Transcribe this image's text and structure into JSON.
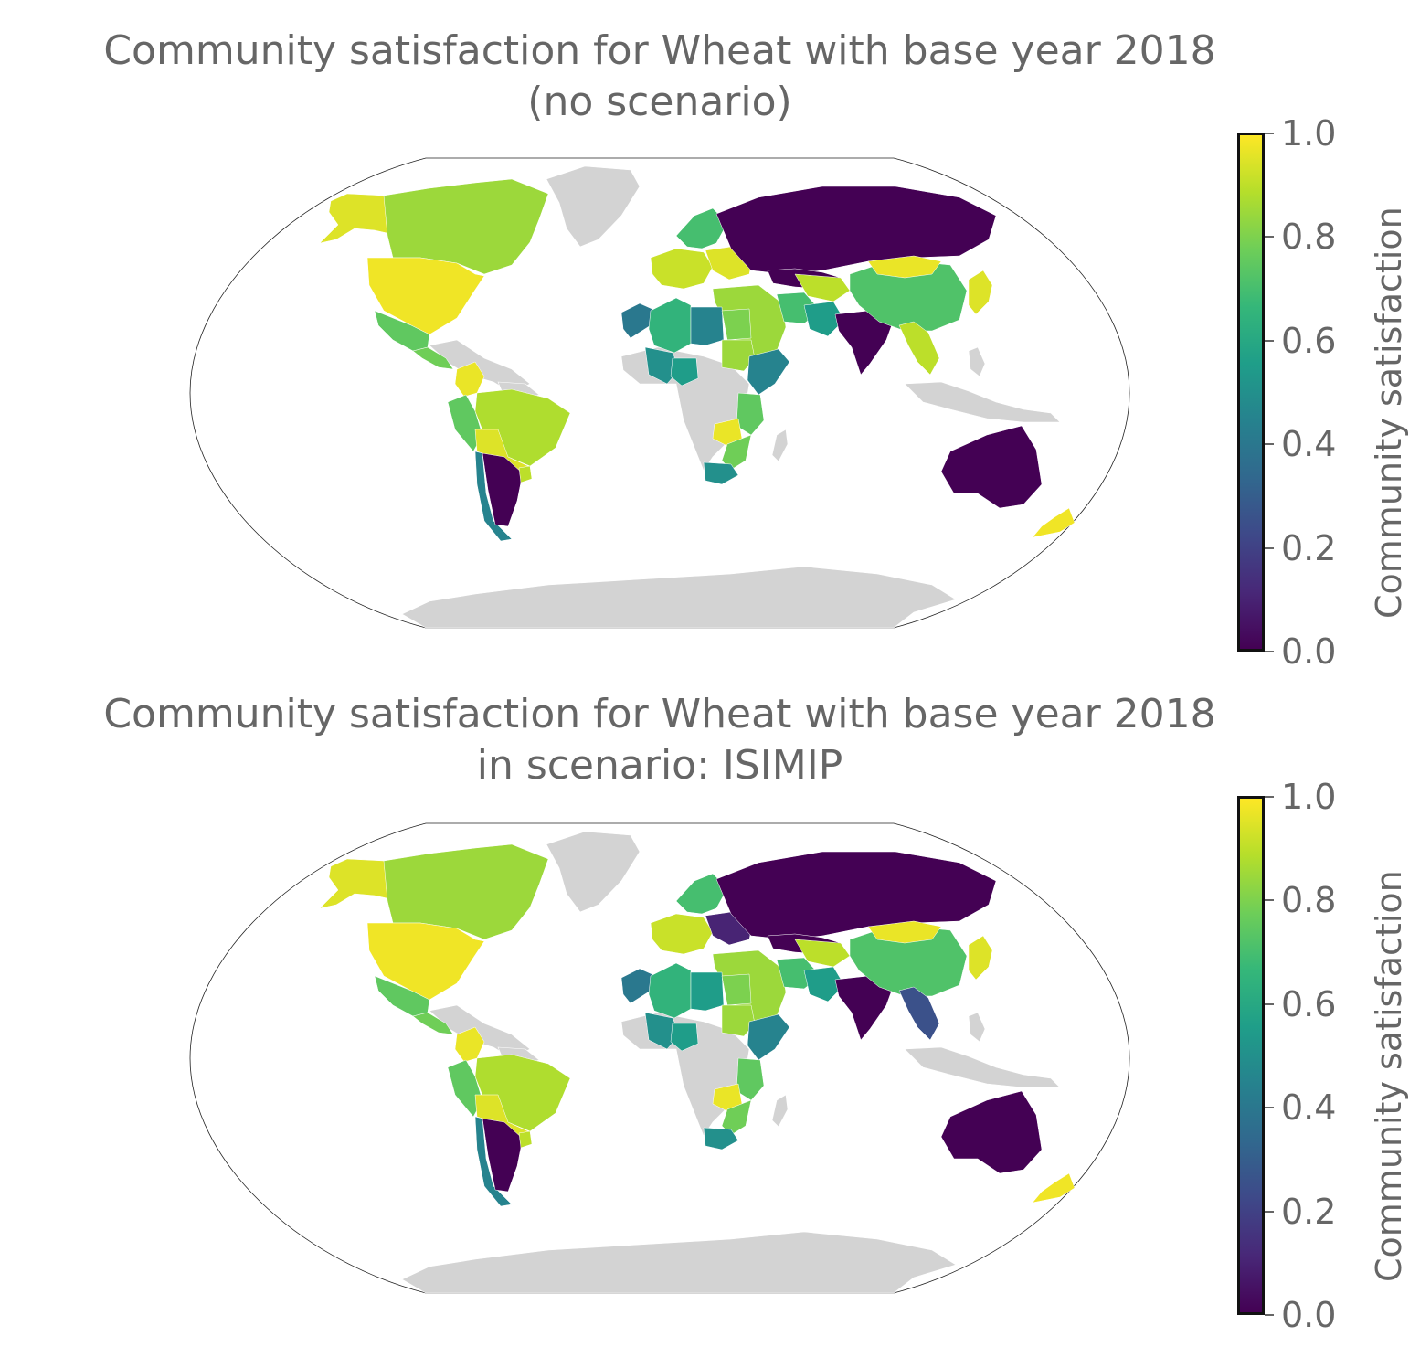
{
  "colormap": {
    "name": "viridis",
    "stops": [
      "#440154",
      "#482878",
      "#3e4989",
      "#31688e",
      "#26828e",
      "#1f9e89",
      "#35b779",
      "#6ece58",
      "#b5de2b",
      "#fde725"
    ]
  },
  "no_data_color": "#d3d3d3",
  "panels": [
    {
      "title_line1": "Community satisfaction for Wheat with base year 2018",
      "title_line2": "(no scenario)",
      "colorbar": {
        "label": "Community satisfaction",
        "range": [
          0.0,
          1.0
        ],
        "ticks": [
          "1.0",
          "0.8",
          "0.6",
          "0.4",
          "0.2",
          "0.0"
        ]
      },
      "regions": {
        "alaska": 0.95,
        "canada": 0.85,
        "usa": 0.98,
        "mexico": 0.75,
        "central_america": 0.78,
        "colombia_venezuela": 0.97,
        "peru": 0.75,
        "brazil": 0.88,
        "bolivia_paraguay": 0.95,
        "chile": 0.45,
        "argentina": 0.0,
        "uruguay": 0.9,
        "scandinavia": 0.7,
        "western_europe": 0.92,
        "eastern_europe": 0.95,
        "russia": 0.0,
        "kazakhstan": 0.0,
        "turkey_middle_east": 0.85,
        "iran": 0.7,
        "central_asia": 0.9,
        "pakistan": 0.55,
        "india": 0.0,
        "china": 0.72,
        "mongolia": 0.97,
        "japan": 0.95,
        "southeast_asia": 0.9,
        "morocco": 0.4,
        "algeria": 0.65,
        "libya": 0.45,
        "egypt": 0.8,
        "sudan": 0.85,
        "west_sahel": 0.5,
        "nigeria": 0.55,
        "ethiopia_somalia": 0.45,
        "kenya_tanzania": 0.75,
        "zambia_zimbabwe": 0.97,
        "mozambique_malawi": 0.78,
        "southern_africa": 0.5,
        "australia": 0.0,
        "new_zealand": 0.98
      }
    },
    {
      "title_line1": "Community satisfaction for Wheat with base year 2018",
      "title_line2": "in scenario: ISIMIP",
      "colorbar": {
        "label": "Community satisfaction",
        "range": [
          0.0,
          1.0
        ],
        "ticks": [
          "1.0",
          "0.8",
          "0.6",
          "0.4",
          "0.2",
          "0.0"
        ]
      },
      "regions": {
        "alaska": 0.95,
        "canada": 0.85,
        "usa": 0.98,
        "mexico": 0.75,
        "central_america": 0.78,
        "colombia_venezuela": 0.97,
        "peru": 0.75,
        "brazil": 0.88,
        "bolivia_paraguay": 0.95,
        "chile": 0.45,
        "argentina": 0.0,
        "uruguay": 0.9,
        "scandinavia": 0.7,
        "western_europe": 0.92,
        "eastern_europe": 0.1,
        "russia": 0.0,
        "kazakhstan": 0.0,
        "turkey_middle_east": 0.85,
        "iran": 0.7,
        "central_asia": 0.9,
        "pakistan": 0.55,
        "india": 0.0,
        "china": 0.72,
        "mongolia": 0.97,
        "japan": 0.95,
        "southeast_asia": 0.25,
        "morocco": 0.4,
        "algeria": 0.65,
        "libya": 0.55,
        "egypt": 0.8,
        "sudan": 0.85,
        "west_sahel": 0.5,
        "nigeria": 0.55,
        "ethiopia_somalia": 0.45,
        "kenya_tanzania": 0.75,
        "zambia_zimbabwe": 0.97,
        "mozambique_malawi": 0.78,
        "southern_africa": 0.5,
        "australia": 0.0,
        "new_zealand": 0.98
      }
    }
  ]
}
